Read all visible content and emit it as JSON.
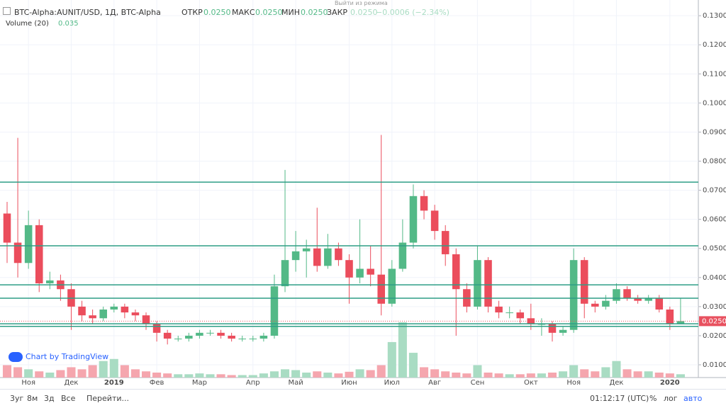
{
  "header": {
    "symbol": "BTC-Alpha:AUNIT/USD, 1Д, BTC-Alpha",
    "open_label": "ОТКР",
    "open": "0.0250",
    "high_label": "МАКС",
    "high": "0.0250",
    "low_label": "МИН",
    "low": "0.0250",
    "close_label": "ЗАКР",
    "close": "0.0250",
    "change": "−0.0006 (−2.34%)",
    "exit_mode": "Выйти из режима",
    "volume_label": "Volume (20)",
    "volume_value": "0.035",
    "watermark": "Chart by TradingView"
  },
  "chart_data": {
    "type": "candlestick",
    "categories": [
      null,
      null,
      "Ноя",
      null,
      null,
      null,
      "Дек",
      null,
      null,
      null,
      "2019",
      null,
      null,
      null,
      "Фев",
      null,
      null,
      null,
      "Мар",
      null,
      null,
      null,
      null,
      "Апр",
      null,
      null,
      null,
      "Май",
      null,
      null,
      null,
      null,
      "Июн",
      null,
      null,
      null,
      "Июл",
      null,
      null,
      null,
      "Авг",
      null,
      null,
      null,
      "Сен",
      null,
      null,
      null,
      null,
      "Окт",
      null,
      null,
      null,
      "Ноя",
      null,
      null,
      null,
      "Дек",
      null,
      null,
      null,
      null,
      "2020",
      null
    ],
    "series": [
      {
        "name": "AUNIT/USD",
        "up_color": "#53b987",
        "down_color": "#eb4d5c",
        "open": [
          0.062,
          0.052,
          0.045,
          0.058,
          0.038,
          0.039,
          0.036,
          0.03,
          0.027,
          0.026,
          0.029,
          0.03,
          0.028,
          0.027,
          0.024,
          0.021,
          0.019,
          0.019,
          0.02,
          0.021,
          0.021,
          0.02,
          0.019,
          0.019,
          0.019,
          0.02,
          0.037,
          0.046,
          0.049,
          0.05,
          0.044,
          0.05,
          0.046,
          0.04,
          0.043,
          0.041,
          0.031,
          0.043,
          0.052,
          0.068,
          0.063,
          0.056,
          0.048,
          0.036,
          0.03,
          0.046,
          0.03,
          0.028,
          0.028,
          0.026,
          0.024,
          0.024,
          0.021,
          0.022,
          0.046,
          0.031,
          0.03,
          0.032,
          0.036,
          0.033,
          0.032,
          0.033,
          0.029,
          0.024
        ],
        "high": [
          0.066,
          0.088,
          0.063,
          0.06,
          0.042,
          0.041,
          0.038,
          0.032,
          0.029,
          0.03,
          0.031,
          0.031,
          0.029,
          0.028,
          0.025,
          0.022,
          0.02,
          0.021,
          0.022,
          0.022,
          0.022,
          0.021,
          0.02,
          0.02,
          0.021,
          0.041,
          0.077,
          0.056,
          0.053,
          0.064,
          0.055,
          0.052,
          0.048,
          0.06,
          0.051,
          0.089,
          0.046,
          0.06,
          0.072,
          0.07,
          0.065,
          0.058,
          0.05,
          0.038,
          0.051,
          0.047,
          0.032,
          0.03,
          0.029,
          0.031,
          0.026,
          0.025,
          0.023,
          0.05,
          0.047,
          0.032,
          0.034,
          0.038,
          0.037,
          0.034,
          0.034,
          0.034,
          0.03,
          0.033
        ],
        "low": [
          0.045,
          0.04,
          0.043,
          0.035,
          0.036,
          0.032,
          0.022,
          0.025,
          0.024,
          0.025,
          0.028,
          0.026,
          0.025,
          0.022,
          0.018,
          0.017,
          0.018,
          0.018,
          0.019,
          0.02,
          0.019,
          0.018,
          0.018,
          0.018,
          0.018,
          0.019,
          0.035,
          0.042,
          0.04,
          0.042,
          0.043,
          0.044,
          0.031,
          0.038,
          0.037,
          0.027,
          0.03,
          0.042,
          0.05,
          0.06,
          0.053,
          0.044,
          0.02,
          0.028,
          0.029,
          0.028,
          0.026,
          0.026,
          0.024,
          0.022,
          0.02,
          0.018,
          0.02,
          0.021,
          0.026,
          0.028,
          0.029,
          0.031,
          0.032,
          0.031,
          0.031,
          0.028,
          0.022,
          0.024
        ],
        "close": [
          0.052,
          0.045,
          0.058,
          0.038,
          0.039,
          0.036,
          0.03,
          0.027,
          0.026,
          0.029,
          0.03,
          0.028,
          0.027,
          0.024,
          0.021,
          0.019,
          0.019,
          0.02,
          0.021,
          0.021,
          0.02,
          0.019,
          0.019,
          0.019,
          0.02,
          0.037,
          0.046,
          0.049,
          0.05,
          0.044,
          0.05,
          0.046,
          0.04,
          0.043,
          0.041,
          0.031,
          0.043,
          0.052,
          0.068,
          0.063,
          0.056,
          0.048,
          0.036,
          0.03,
          0.046,
          0.03,
          0.028,
          0.028,
          0.026,
          0.024,
          0.024,
          0.021,
          0.022,
          0.046,
          0.031,
          0.03,
          0.032,
          0.036,
          0.033,
          0.032,
          0.033,
          0.029,
          0.024,
          0.025
        ]
      },
      {
        "name": "Volume (20)",
        "axis": "y2",
        "up_color": "#a9dcc3",
        "down_color": "#f5a6ae",
        "values": [
          30,
          25,
          20,
          15,
          12,
          18,
          25,
          20,
          30,
          40,
          45,
          30,
          20,
          15,
          12,
          10,
          8,
          8,
          10,
          8,
          8,
          6,
          6,
          6,
          10,
          15,
          20,
          18,
          12,
          15,
          12,
          10,
          14,
          20,
          18,
          30,
          86,
          134,
          60,
          25,
          20,
          15,
          12,
          10,
          30,
          12,
          10,
          8,
          8,
          10,
          10,
          12,
          15,
          30,
          20,
          15,
          25,
          40,
          20,
          15,
          15,
          12,
          10,
          8
        ]
      }
    ],
    "levels": [
      0.0728,
      0.0509,
      0.0375,
      0.0329,
      0.0241,
      0.0232
    ],
    "level_color": "#2e9e86",
    "last_label": "0.0250",
    "last_color": "#e8515f",
    "ylim": [
      0.00562,
      0.1354
    ],
    "y2lim": [
      0,
      400
    ],
    "yticks": [
      {
        "value": 0.01,
        "label": "0.0100"
      },
      {
        "value": 0.02,
        "label": "0.0200"
      },
      {
        "value": 0.03,
        "label": "0.0300"
      },
      {
        "value": 0.04,
        "label": "0.0400"
      },
      {
        "value": 0.05,
        "label": "0.0500"
      },
      {
        "value": 0.06,
        "label": "0.0600"
      },
      {
        "value": 0.07,
        "label": "0.0700"
      },
      {
        "value": 0.08,
        "label": "0.0800"
      },
      {
        "value": 0.09,
        "label": "0.0900"
      },
      {
        "value": 0.1,
        "label": "0.1000"
      },
      {
        "value": 0.11,
        "label": "0.1100"
      },
      {
        "value": 0.12,
        "label": "0.1200"
      },
      {
        "value": 0.13,
        "label": "0.1300"
      }
    ],
    "grid": true
  },
  "toolbar": {
    "ranges": [
      "3уг",
      "8м",
      "3д",
      "Все"
    ],
    "goto": "Перейти...",
    "time": "01:12:17 (UTC)",
    "percent": "%",
    "log": "лог",
    "auto": "авто"
  }
}
